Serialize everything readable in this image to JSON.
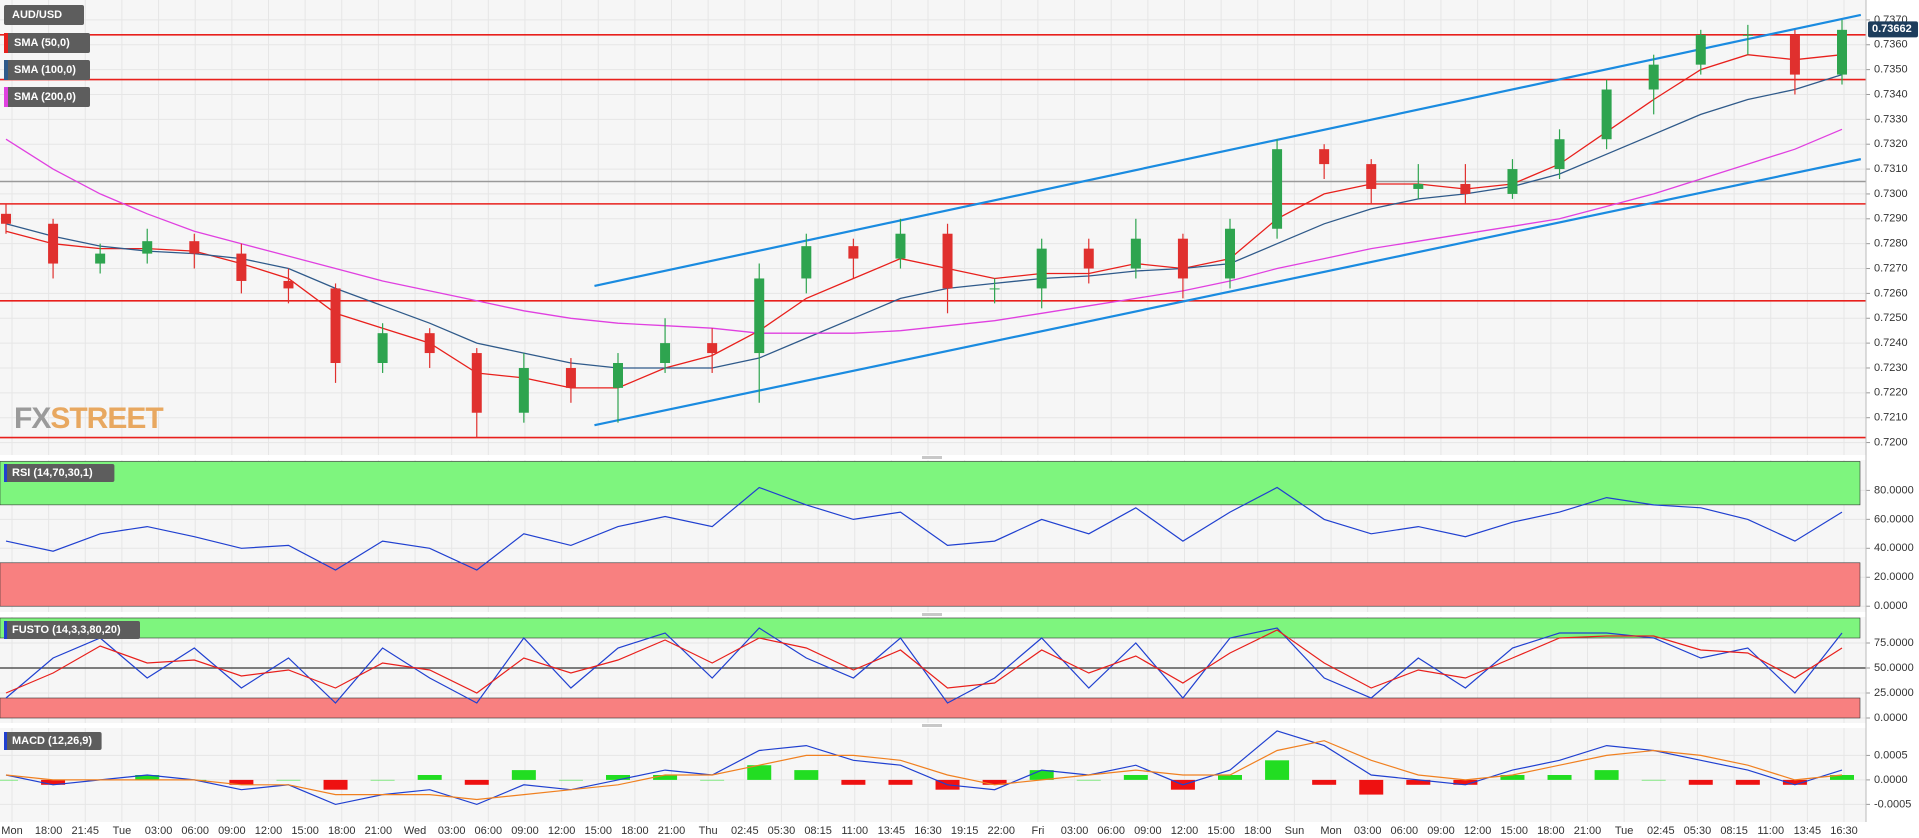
{
  "chart_data": [
    {
      "type": "candlestick",
      "title": "AUD/USD",
      "up_color": "#2ea44f",
      "down_color": "#e0302e",
      "open": [
        0.7292,
        0.7288,
        0.7272,
        0.7276,
        0.7281,
        0.7276,
        0.7265,
        0.7262,
        0.7232,
        0.7244,
        0.7236,
        0.7212,
        0.723,
        0.7222,
        0.7232,
        0.724,
        0.7236,
        0.7266,
        0.7279,
        0.7274,
        0.7284,
        0.7262,
        0.7262,
        0.7278,
        0.727,
        0.7282,
        0.7266,
        0.7286,
        0.7318,
        0.7312,
        0.7302,
        0.7304,
        0.73,
        0.731,
        0.7322,
        0.7342,
        0.7352,
        0.7364,
        0.7364,
        0.7348
      ],
      "high": [
        0.7296,
        0.729,
        0.728,
        0.7286,
        0.7284,
        0.728,
        0.727,
        0.7264,
        0.7248,
        0.7246,
        0.7238,
        0.7236,
        0.7234,
        0.7236,
        0.725,
        0.7246,
        0.7272,
        0.7284,
        0.7282,
        0.729,
        0.7288,
        0.7266,
        0.7282,
        0.7282,
        0.729,
        0.7284,
        0.729,
        0.7322,
        0.732,
        0.7314,
        0.7312,
        0.7312,
        0.7314,
        0.7326,
        0.7346,
        0.7356,
        0.7366,
        0.7368,
        0.7366,
        0.737
      ],
      "low": [
        0.7284,
        0.7266,
        0.7268,
        0.7272,
        0.727,
        0.726,
        0.7256,
        0.7224,
        0.7228,
        0.723,
        0.7202,
        0.7208,
        0.7216,
        0.7208,
        0.7228,
        0.7228,
        0.7216,
        0.726,
        0.7266,
        0.727,
        0.7252,
        0.7256,
        0.7254,
        0.7264,
        0.7266,
        0.7258,
        0.7262,
        0.7282,
        0.7306,
        0.7296,
        0.7298,
        0.7296,
        0.7298,
        0.7306,
        0.7318,
        0.7332,
        0.7348,
        0.7356,
        0.734,
        0.7344
      ],
      "close": [
        0.7288,
        0.7272,
        0.7276,
        0.7281,
        0.7276,
        0.7265,
        0.7262,
        0.7232,
        0.7244,
        0.7236,
        0.7212,
        0.723,
        0.7222,
        0.7232,
        0.724,
        0.7236,
        0.7266,
        0.7279,
        0.7274,
        0.7284,
        0.7262,
        0.7262,
        0.7278,
        0.727,
        0.7282,
        0.7266,
        0.7286,
        0.7318,
        0.7312,
        0.7302,
        0.7304,
        0.73,
        0.731,
        0.7322,
        0.7342,
        0.7352,
        0.7364,
        0.7364,
        0.7348,
        0.7366
      ],
      "series": [
        {
          "name": "SMA (50,0)",
          "color": "#e8201c",
          "values": [
            0.7285,
            0.728,
            0.7278,
            0.7278,
            0.7277,
            0.7272,
            0.7266,
            0.7252,
            0.7246,
            0.724,
            0.7228,
            0.7226,
            0.7222,
            0.7222,
            0.723,
            0.7235,
            0.7245,
            0.7258,
            0.7266,
            0.7274,
            0.727,
            0.7266,
            0.7268,
            0.7268,
            0.7272,
            0.727,
            0.7274,
            0.729,
            0.73,
            0.7304,
            0.7304,
            0.7302,
            0.7304,
            0.7312,
            0.7325,
            0.7338,
            0.735,
            0.7356,
            0.7354,
            0.7356
          ]
        },
        {
          "name": "SMA (100,0)",
          "color": "#2f5a8a",
          "values": [
            0.7288,
            0.7283,
            0.7279,
            0.7277,
            0.7276,
            0.7274,
            0.727,
            0.7262,
            0.7255,
            0.7248,
            0.724,
            0.7236,
            0.7232,
            0.723,
            0.723,
            0.723,
            0.7234,
            0.7242,
            0.725,
            0.7258,
            0.7262,
            0.7264,
            0.7266,
            0.7267,
            0.7269,
            0.727,
            0.7272,
            0.728,
            0.7288,
            0.7294,
            0.7298,
            0.73,
            0.7303,
            0.7308,
            0.7316,
            0.7324,
            0.7332,
            0.7338,
            0.7342,
            0.7348
          ]
        },
        {
          "name": "SMA (200,0)",
          "color": "#e040e0",
          "values": [
            0.7322,
            0.731,
            0.73,
            0.7292,
            0.7285,
            0.728,
            0.7275,
            0.727,
            0.7265,
            0.7261,
            0.7257,
            0.7253,
            0.725,
            0.7248,
            0.7247,
            0.7246,
            0.7244,
            0.7244,
            0.7244,
            0.7245,
            0.7247,
            0.7249,
            0.7252,
            0.7255,
            0.7258,
            0.7261,
            0.7265,
            0.727,
            0.7274,
            0.7278,
            0.7281,
            0.7284,
            0.7287,
            0.729,
            0.7295,
            0.73,
            0.7306,
            0.7312,
            0.7318,
            0.7326
          ]
        }
      ],
      "levels": [
        {
          "value": 0.7364,
          "color": "#e8201c"
        },
        {
          "value": 0.7346,
          "color": "#e8201c"
        },
        {
          "value": 0.7305,
          "color": "#999999"
        },
        {
          "value": 0.7296,
          "color": "#e8201c"
        },
        {
          "value": 0.7257,
          "color": "#e8201c"
        },
        {
          "value": 0.7202,
          "color": "#e8201c"
        }
      ],
      "trendlines": [
        {
          "color": "#1a8be0",
          "x": [
            12.5,
            39.4
          ],
          "y": [
            0.7263,
            0.7372
          ]
        },
        {
          "color": "#1a8be0",
          "x": [
            12.5,
            39.4
          ],
          "y": [
            0.7207,
            0.7314
          ]
        }
      ],
      "last_price": {
        "value": 0.73662,
        "label": "0.73662"
      },
      "watermark": {
        "fx": "FX",
        "street": "STREET"
      },
      "ylim": [
        0.7195,
        0.7378
      ],
      "yticks": [
        {
          "value": 0.72,
          "label": "0.7200"
        },
        {
          "value": 0.721,
          "label": "0.7210"
        },
        {
          "value": 0.722,
          "label": "0.7220"
        },
        {
          "value": 0.723,
          "label": "0.7230"
        },
        {
          "value": 0.724,
          "label": "0.7240"
        },
        {
          "value": 0.725,
          "label": "0.7250"
        },
        {
          "value": 0.726,
          "label": "0.7260"
        },
        {
          "value": 0.727,
          "label": "0.7270"
        },
        {
          "value": 0.728,
          "label": "0.7280"
        },
        {
          "value": 0.729,
          "label": "0.7290"
        },
        {
          "value": 0.73,
          "label": "0.7300"
        },
        {
          "value": 0.731,
          "label": "0.7310"
        },
        {
          "value": 0.732,
          "label": "0.7320"
        },
        {
          "value": 0.733,
          "label": "0.7330"
        },
        {
          "value": 0.734,
          "label": "0.7340"
        },
        {
          "value": 0.735,
          "label": "0.7350"
        },
        {
          "value": 0.736,
          "label": "0.7360"
        },
        {
          "value": 0.737,
          "label": "0.7370"
        }
      ]
    },
    {
      "type": "line",
      "title": "RSI (14,70,30,1)",
      "bands": [
        {
          "from": 70,
          "to": 100,
          "color": "#7ef57e"
        },
        {
          "from": 0,
          "to": 30,
          "color": "#f88080"
        }
      ],
      "series": [
        {
          "color": "#2040d0",
          "values": [
            45,
            38,
            50,
            55,
            48,
            40,
            42,
            25,
            45,
            40,
            25,
            50,
            42,
            55,
            62,
            55,
            82,
            70,
            60,
            65,
            42,
            45,
            60,
            50,
            68,
            45,
            65,
            82,
            60,
            50,
            55,
            48,
            58,
            65,
            75,
            70,
            68,
            60,
            45,
            65
          ]
        }
      ],
      "ylim": [
        -4,
        101
      ],
      "yticks": [
        {
          "value": 0,
          "label": "0.0000"
        },
        {
          "value": 20,
          "label": "20.0000"
        },
        {
          "value": 40,
          "label": "40.0000"
        },
        {
          "value": 60,
          "label": "60.0000"
        },
        {
          "value": 80,
          "label": "80.0000"
        }
      ]
    },
    {
      "type": "line",
      "title": "FUSTO (14,3,3,80,20)",
      "bands": [
        {
          "from": 80,
          "to": 100,
          "color": "#7ef57e"
        },
        {
          "from": 0,
          "to": 20,
          "color": "#f88080"
        }
      ],
      "levels": [
        {
          "value": 50,
          "color": "#555555"
        }
      ],
      "series": [
        {
          "color": "#2040d0",
          "values": [
            20,
            60,
            80,
            40,
            70,
            30,
            60,
            15,
            70,
            40,
            15,
            80,
            30,
            70,
            85,
            40,
            90,
            60,
            40,
            80,
            15,
            40,
            80,
            30,
            75,
            20,
            80,
            90,
            40,
            20,
            60,
            30,
            70,
            85,
            85,
            80,
            60,
            70,
            25,
            85
          ]
        },
        {
          "color": "#e8201c",
          "values": [
            25,
            45,
            72,
            55,
            58,
            42,
            48,
            30,
            55,
            48,
            25,
            60,
            45,
            58,
            78,
            55,
            80,
            70,
            48,
            68,
            30,
            35,
            68,
            45,
            62,
            35,
            65,
            88,
            55,
            30,
            48,
            40,
            60,
            80,
            82,
            82,
            68,
            65,
            40,
            70
          ]
        }
      ],
      "ylim": [
        -5,
        101
      ],
      "yticks": [
        {
          "value": 0,
          "label": "0.0000"
        },
        {
          "value": 25,
          "label": "25.0000"
        },
        {
          "value": 50,
          "label": "50.0000"
        },
        {
          "value": 75,
          "label": "75.0000"
        }
      ]
    },
    {
      "type": "macd",
      "title": "MACD (12,26,9)",
      "up_color": "#22dd22",
      "down_color": "#ee1111",
      "histogram": [
        0,
        -0.0001,
        0,
        0.0001,
        0,
        -0.0001,
        0,
        -0.0002,
        0,
        0.0001,
        -0.0001,
        0.0002,
        0,
        0.0001,
        0.0001,
        0,
        0.0003,
        0.0002,
        -0.0001,
        -0.0001,
        -0.0002,
        -0.0001,
        0.0002,
        0,
        0.0001,
        -0.0002,
        0.0001,
        0.0004,
        -0.0001,
        -0.0003,
        -0.0001,
        -0.0001,
        0.0001,
        0.0001,
        0.0002,
        0,
        -0.0001,
        -0.0001,
        -0.0001,
        0.0001
      ],
      "series": [
        {
          "color": "#2040d0",
          "values": [
            0.0001,
            -0.0001,
            0,
            0.0001,
            0,
            -0.0002,
            -0.0001,
            -0.0005,
            -0.0003,
            -0.0002,
            -0.0005,
            -0.0001,
            -0.0002,
            0,
            0.0002,
            0.0001,
            0.0006,
            0.0007,
            0.0004,
            0.0003,
            -0.0001,
            -0.0002,
            0.0002,
            0.0001,
            0.0003,
            -0.0001,
            0.0002,
            0.001,
            0.0007,
            0.0001,
            0,
            -0.0001,
            0.0002,
            0.0004,
            0.0007,
            0.0006,
            0.0004,
            0.0002,
            -0.0001,
            0.0002
          ]
        },
        {
          "color": "#f08020",
          "values": [
            0.0001,
            0,
            0,
            0,
            0,
            -0.0001,
            -0.0001,
            -0.0003,
            -0.0003,
            -0.0003,
            -0.0004,
            -0.0003,
            -0.0002,
            -0.0001,
            0.0001,
            0.0001,
            0.0003,
            0.0005,
            0.0005,
            0.0004,
            0.0001,
            -0.0001,
            0,
            0.0001,
            0.0002,
            0.0001,
            0.0001,
            0.0006,
            0.0008,
            0.0004,
            0.0001,
            0,
            0.0001,
            0.0003,
            0.0005,
            0.0006,
            0.0005,
            0.0003,
            0,
            0.0001
          ]
        }
      ],
      "ylim": [
        -0.00086,
        0.00106
      ],
      "yticks": [
        {
          "value": -0.0005,
          "label": "-0.0005"
        },
        {
          "value": 0,
          "label": "0.0000"
        },
        {
          "value": 0.0005,
          "label": "0.0005"
        }
      ]
    }
  ],
  "x_axis": {
    "labels": [
      "Mon",
      "18:00",
      "21:45",
      "Tue",
      "03:00",
      "06:00",
      "09:00",
      "12:00",
      "15:00",
      "18:00",
      "21:00",
      "Wed",
      "03:00",
      "06:00",
      "09:00",
      "12:00",
      "15:00",
      "18:00",
      "21:00",
      "Thu",
      "02:45",
      "05:30",
      "08:15",
      "11:00",
      "13:45",
      "16:30",
      "19:15",
      "22:00",
      "Fri",
      "03:00",
      "06:00",
      "09:00",
      "12:00",
      "15:00",
      "18:00",
      "Sun",
      "Mon",
      "03:00",
      "06:00",
      "09:00",
      "12:00",
      "15:00",
      "18:00",
      "21:00",
      "Tue",
      "02:45",
      "05:30",
      "08:15",
      "11:00",
      "13:45",
      "16:30"
    ]
  }
}
